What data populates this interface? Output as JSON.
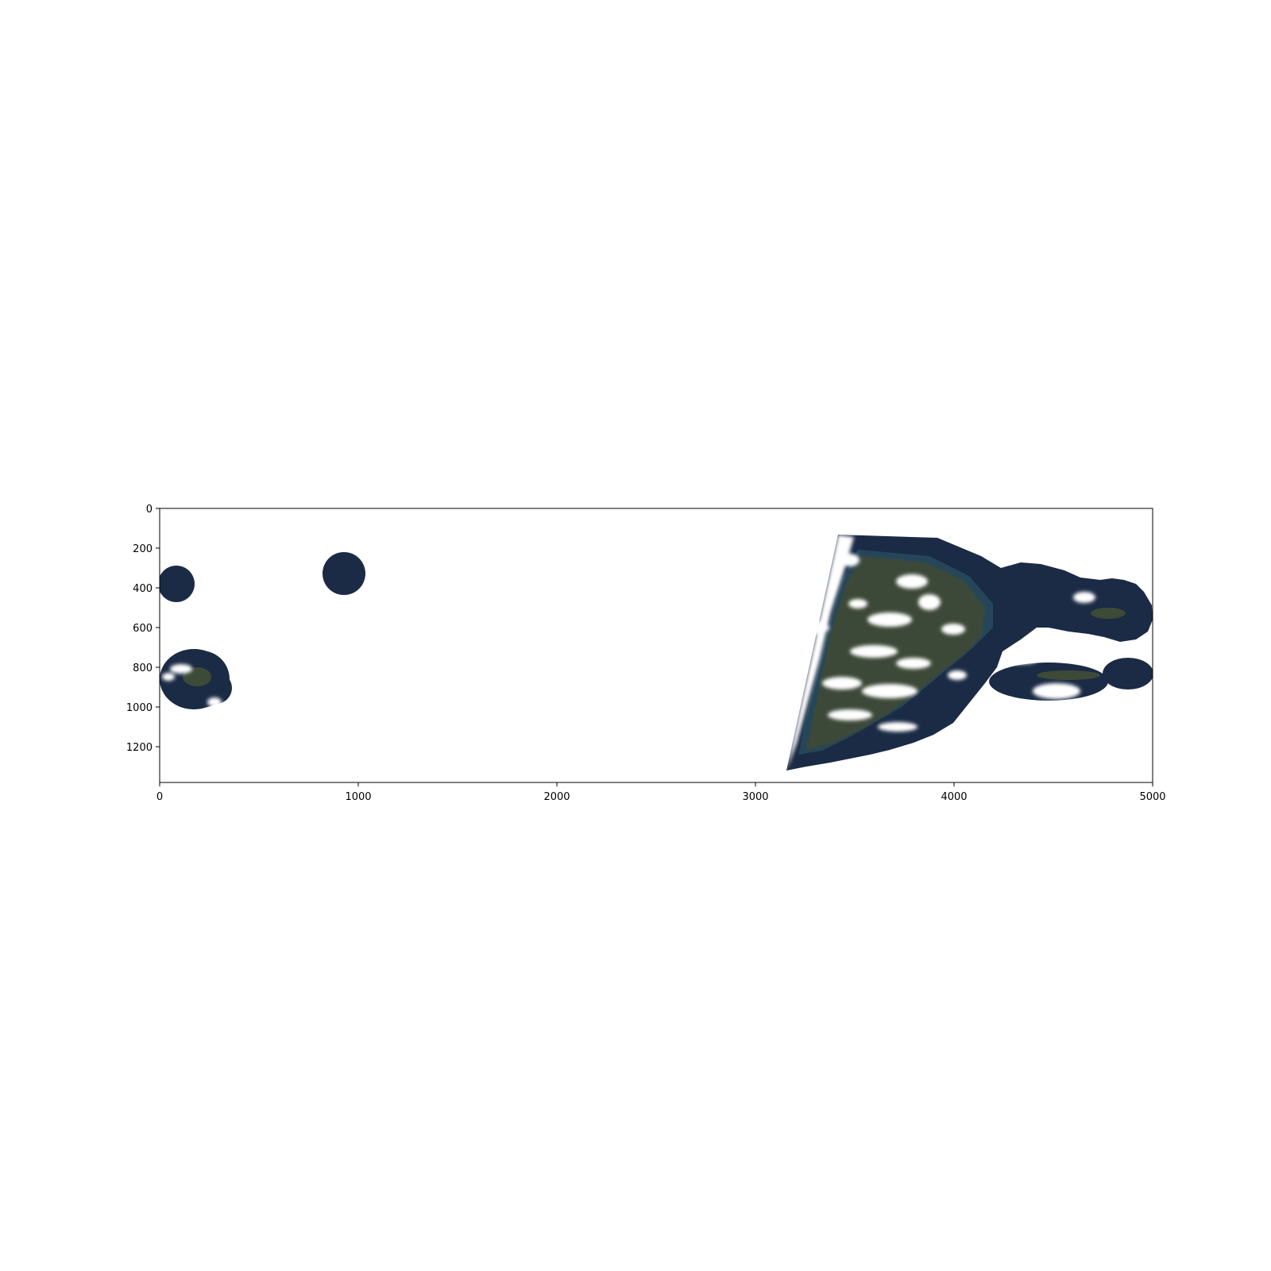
{
  "figure": {
    "background": "#ffffff",
    "axes_frame_color": "#000000",
    "x_axis": {
      "ticks": [
        0,
        1000,
        2000,
        3000,
        4000,
        5000
      ],
      "tick_labels": [
        "0",
        "1000",
        "2000",
        "3000",
        "4000",
        "5000"
      ],
      "range": [
        0,
        5000
      ]
    },
    "y_axis": {
      "ticks": [
        0,
        200,
        400,
        600,
        800,
        1000,
        1200
      ],
      "tick_labels": [
        "0",
        "200",
        "400",
        "600",
        "800",
        "1000",
        "1200"
      ],
      "range": [
        0,
        1380
      ],
      "inverted": true
    },
    "image": {
      "type": "satellite-mosaic",
      "colors": {
        "ocean": "#1b2b45",
        "shallow_water": "#2e5d6b",
        "land": "#3d4a38",
        "cloud": "#ffffff"
      }
    }
  }
}
